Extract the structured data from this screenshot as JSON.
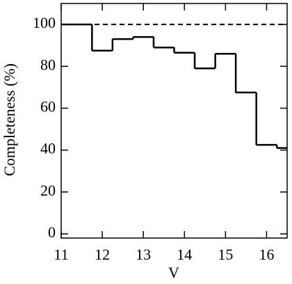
{
  "chart_data": {
    "type": "histogram",
    "xlabel": "V",
    "ylabel": "Completeness (%)",
    "bins": [
      11,
      11.75,
      12.25,
      12.75,
      13.25,
      13.75,
      14.25,
      14.75,
      15.25,
      15.75,
      16.25,
      16.5
    ],
    "values": [
      100,
      87.5,
      93,
      94,
      89,
      86.5,
      79,
      86,
      67.5,
      42.5,
      41
    ],
    "color": "#000000",
    "reference_line": 100,
    "xlim": [
      11,
      16.5
    ],
    "xticks": [
      11,
      12,
      13,
      14,
      15,
      16
    ],
    "ylim": [
      -2,
      110
    ],
    "yticks": [
      0,
      20,
      40,
      60,
      80,
      100
    ]
  }
}
